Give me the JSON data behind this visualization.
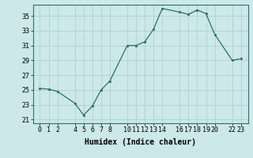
{
  "xlabel": "Humidex (Indice chaleur)",
  "x": [
    0,
    1,
    2,
    4,
    5,
    6,
    7,
    8,
    10,
    11,
    12,
    13,
    14,
    16,
    17,
    18,
    19,
    20,
    22,
    23
  ],
  "y": [
    25.2,
    25.1,
    24.8,
    23.2,
    21.6,
    22.8,
    25.0,
    26.2,
    31.0,
    31.0,
    31.5,
    33.2,
    36.0,
    35.5,
    35.2,
    35.8,
    35.3,
    32.5,
    29.0,
    29.2
  ],
  "ylim": [
    20.5,
    36.5
  ],
  "yticks": [
    21,
    23,
    25,
    27,
    29,
    31,
    33,
    35
  ],
  "xlim": [
    -0.8,
    23.8
  ],
  "xticks": [
    0,
    1,
    2,
    4,
    5,
    6,
    7,
    8,
    10,
    11,
    12,
    13,
    14,
    16,
    17,
    18,
    19,
    20,
    22,
    23
  ],
  "xtick_labels": [
    "0",
    "1",
    "2",
    "4",
    "5",
    "6",
    "7",
    "8",
    "10",
    "11",
    "12",
    "13",
    "14",
    "16",
    "17",
    "18",
    "19",
    "20",
    "22",
    "23"
  ],
  "line_color": "#2d6e6e",
  "marker_color": "#2d6e6e",
  "bg_color": "#cce8e8",
  "grid_color": "#aacccc",
  "text_color": "#000000",
  "font": "monospace",
  "label_fontsize": 6.5,
  "tick_fontsize": 6.0,
  "xlabel_fontsize": 7.0
}
